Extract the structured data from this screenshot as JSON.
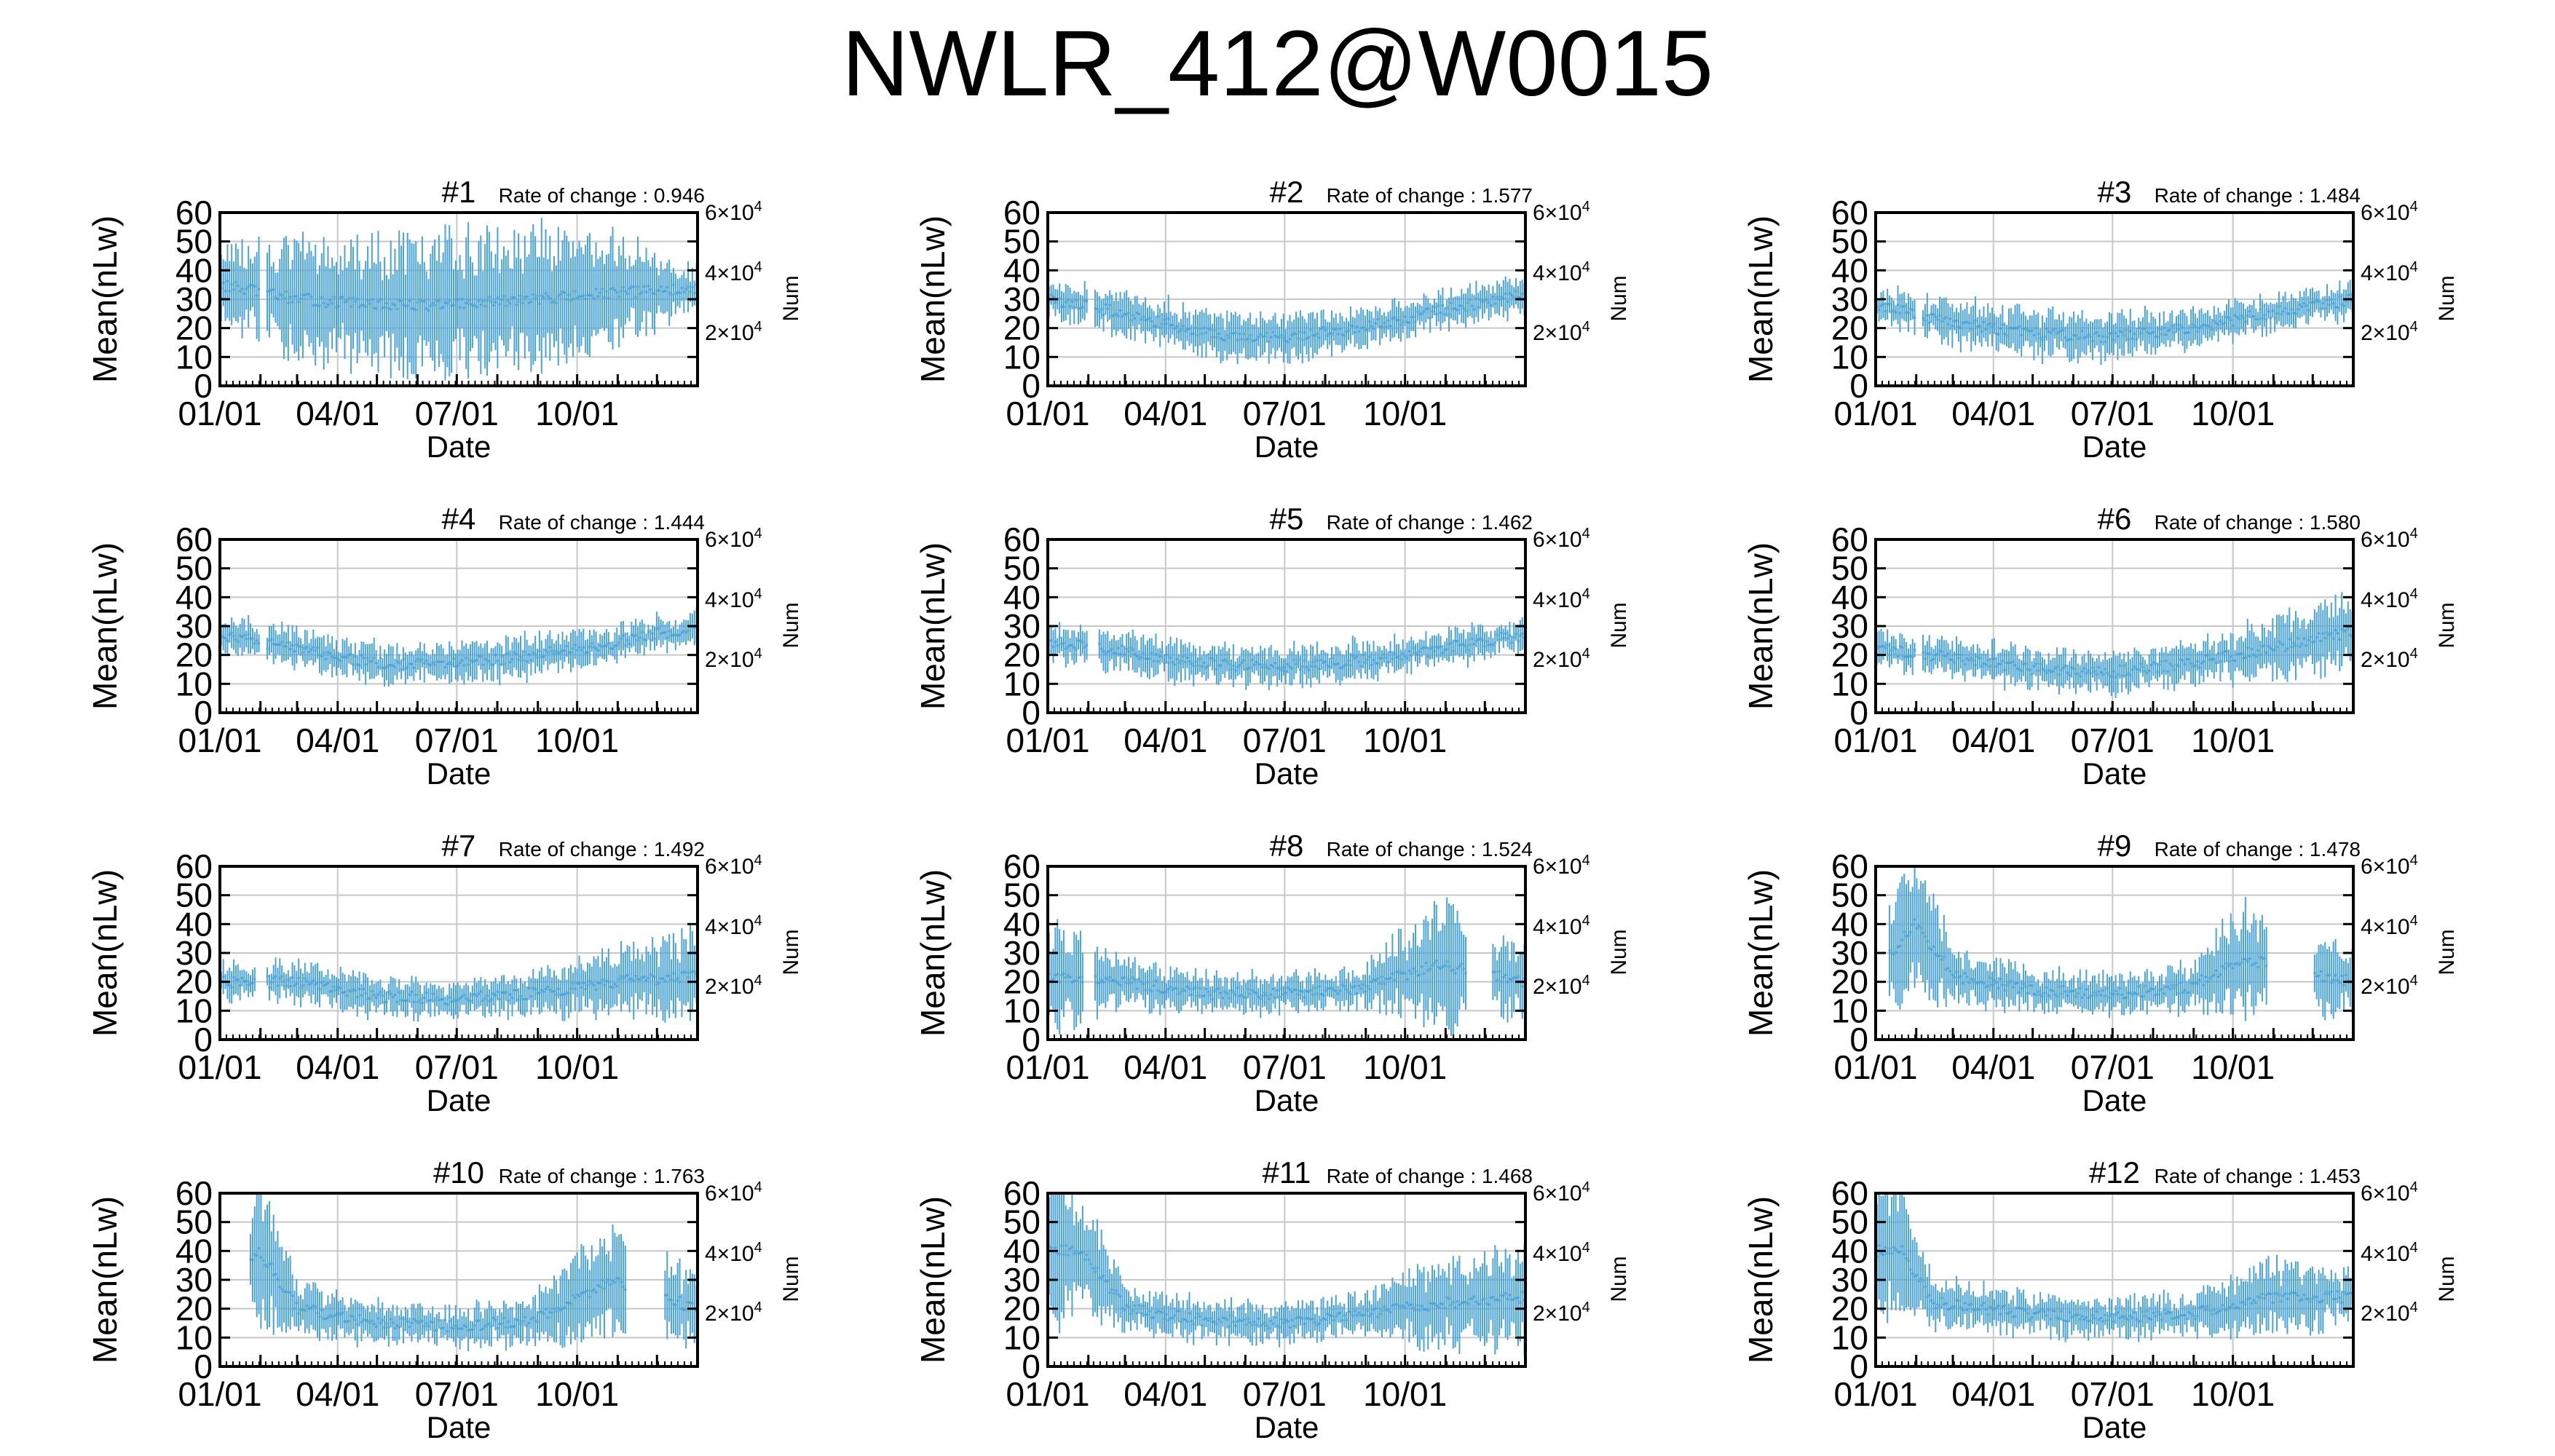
{
  "title": "NWLR_412@W0015",
  "shared": {
    "xlabel": "Date",
    "ylabel": "Mean(nLw)",
    "y2label": "Num",
    "x_ticks": [
      "01/01",
      "04/01",
      "07/01",
      "10/01"
    ],
    "y_ticks": [
      "0",
      "10",
      "20",
      "30",
      "40",
      "50",
      "60"
    ],
    "y2_ticks": [
      {
        "base": "2",
        "exp": "4"
      },
      {
        "base": "4",
        "exp": "4"
      },
      {
        "base": "6",
        "exp": "4"
      }
    ],
    "rate_prefix": "Rate of change : ",
    "series_color": "#4aa3d6",
    "grid": true,
    "ylim": [
      0,
      60
    ],
    "xlim_days": [
      0,
      365
    ]
  },
  "chart_data": [
    {
      "type": "line",
      "title": "#1",
      "rate": "0.946",
      "ylim": [
        0,
        60
      ],
      "profile": [
        [
          0,
          35
        ],
        [
          60,
          30
        ],
        [
          120,
          28
        ],
        [
          180,
          28
        ],
        [
          240,
          30
        ],
        [
          300,
          32
        ],
        [
          365,
          34
        ]
      ],
      "spread": [
        [
          0,
          14
        ],
        [
          60,
          18
        ],
        [
          120,
          20
        ],
        [
          180,
          22
        ],
        [
          240,
          22
        ],
        [
          300,
          18
        ],
        [
          365,
          6
        ]
      ],
      "gaps": [
        [
          30,
          36
        ]
      ]
    },
    {
      "type": "line",
      "title": "#2",
      "rate": "1.577",
      "ylim": [
        0,
        60
      ],
      "profile": [
        [
          0,
          30
        ],
        [
          60,
          25
        ],
        [
          120,
          18
        ],
        [
          180,
          17
        ],
        [
          240,
          20
        ],
        [
          300,
          26
        ],
        [
          365,
          32
        ]
      ],
      "spread": [
        [
          0,
          5
        ],
        [
          60,
          7
        ],
        [
          120,
          7
        ],
        [
          180,
          7
        ],
        [
          240,
          6
        ],
        [
          300,
          5
        ],
        [
          365,
          6
        ]
      ],
      "gaps": [
        [
          30,
          36
        ]
      ]
    },
    {
      "type": "line",
      "title": "#3",
      "rate": "1.484",
      "ylim": [
        0,
        60
      ],
      "profile": [
        [
          0,
          28
        ],
        [
          60,
          22
        ],
        [
          120,
          18
        ],
        [
          180,
          17
        ],
        [
          240,
          20
        ],
        [
          300,
          25
        ],
        [
          365,
          30
        ]
      ],
      "spread": [
        [
          0,
          5
        ],
        [
          60,
          7
        ],
        [
          120,
          7
        ],
        [
          180,
          7
        ],
        [
          240,
          6
        ],
        [
          300,
          5
        ],
        [
          365,
          5
        ]
      ],
      "gaps": [
        [
          30,
          36
        ]
      ]
    },
    {
      "type": "line",
      "title": "#4",
      "rate": "1.444",
      "ylim": [
        0,
        60
      ],
      "profile": [
        [
          0,
          27
        ],
        [
          60,
          22
        ],
        [
          120,
          17
        ],
        [
          180,
          17
        ],
        [
          240,
          20
        ],
        [
          300,
          24
        ],
        [
          365,
          30
        ]
      ],
      "spread": [
        [
          0,
          5
        ],
        [
          60,
          6
        ],
        [
          120,
          6
        ],
        [
          180,
          6
        ],
        [
          240,
          6
        ],
        [
          300,
          5
        ],
        [
          365,
          5
        ]
      ],
      "gaps": [
        [
          30,
          36
        ]
      ]
    },
    {
      "type": "line",
      "title": "#5",
      "rate": "1.462",
      "ylim": [
        0,
        60
      ],
      "profile": [
        [
          0,
          25
        ],
        [
          60,
          21
        ],
        [
          120,
          17
        ],
        [
          180,
          16
        ],
        [
          240,
          18
        ],
        [
          300,
          22
        ],
        [
          365,
          27
        ]
      ],
      "spread": [
        [
          0,
          5
        ],
        [
          60,
          6
        ],
        [
          120,
          6
        ],
        [
          180,
          6
        ],
        [
          240,
          6
        ],
        [
          300,
          5
        ],
        [
          365,
          5
        ]
      ],
      "gaps": [
        [
          30,
          38
        ]
      ]
    },
    {
      "type": "line",
      "title": "#6",
      "rate": "1.580",
      "ylim": [
        0,
        60
      ],
      "profile": [
        [
          0,
          22
        ],
        [
          60,
          19
        ],
        [
          120,
          15
        ],
        [
          180,
          14
        ],
        [
          240,
          17
        ],
        [
          300,
          22
        ],
        [
          365,
          28
        ]
      ],
      "spread": [
        [
          0,
          5
        ],
        [
          60,
          6
        ],
        [
          120,
          6
        ],
        [
          180,
          6
        ],
        [
          240,
          6
        ],
        [
          300,
          9
        ],
        [
          365,
          12
        ]
      ],
      "gaps": [
        [
          30,
          36
        ]
      ]
    },
    {
      "type": "line",
      "title": "#7",
      "rate": "1.492",
      "ylim": [
        0,
        60
      ],
      "profile": [
        [
          0,
          20
        ],
        [
          60,
          20
        ],
        [
          120,
          15
        ],
        [
          180,
          14
        ],
        [
          240,
          16
        ],
        [
          300,
          20
        ],
        [
          365,
          22
        ]
      ],
      "spread": [
        [
          0,
          5
        ],
        [
          60,
          6
        ],
        [
          120,
          6
        ],
        [
          180,
          5
        ],
        [
          240,
          6
        ],
        [
          300,
          10
        ],
        [
          365,
          14
        ]
      ],
      "gaps": [
        [
          28,
          36
        ]
      ]
    },
    {
      "type": "line",
      "title": "#8",
      "rate": "1.524",
      "ylim": [
        0,
        60
      ],
      "profile": [
        [
          0,
          22
        ],
        [
          60,
          20
        ],
        [
          120,
          16
        ],
        [
          180,
          16
        ],
        [
          240,
          18
        ],
        [
          300,
          26
        ],
        [
          365,
          20
        ]
      ],
      "spread": [
        [
          0,
          18
        ],
        [
          60,
          7
        ],
        [
          120,
          6
        ],
        [
          180,
          6
        ],
        [
          240,
          6
        ],
        [
          300,
          20
        ],
        [
          365,
          10
        ]
      ],
      "gaps": [
        [
          28,
          36
        ],
        [
          320,
          340
        ]
      ]
    },
    {
      "type": "line",
      "title": "#9",
      "rate": "1.478",
      "ylim": [
        0,
        60
      ],
      "profile": [
        [
          0,
          24
        ],
        [
          30,
          40
        ],
        [
          60,
          22
        ],
        [
          120,
          17
        ],
        [
          180,
          16
        ],
        [
          240,
          18
        ],
        [
          280,
          28
        ],
        [
          365,
          20
        ]
      ],
      "spread": [
        [
          0,
          10
        ],
        [
          30,
          25
        ],
        [
          60,
          8
        ],
        [
          120,
          6
        ],
        [
          180,
          6
        ],
        [
          240,
          7
        ],
        [
          280,
          18
        ],
        [
          365,
          10
        ]
      ],
      "gaps": [
        [
          0,
          10
        ],
        [
          300,
          335
        ]
      ]
    },
    {
      "type": "line",
      "title": "#10",
      "rate": "1.763",
      "ylim": [
        0,
        60
      ],
      "profile": [
        [
          0,
          20
        ],
        [
          30,
          40
        ],
        [
          60,
          20
        ],
        [
          120,
          15
        ],
        [
          180,
          14
        ],
        [
          240,
          16
        ],
        [
          300,
          30
        ],
        [
          365,
          20
        ]
      ],
      "spread": [
        [
          0,
          10
        ],
        [
          30,
          22
        ],
        [
          60,
          8
        ],
        [
          120,
          6
        ],
        [
          180,
          6
        ],
        [
          240,
          7
        ],
        [
          300,
          18
        ],
        [
          365,
          10
        ]
      ],
      "gaps": [
        [
          0,
          22
        ],
        [
          310,
          340
        ]
      ]
    },
    {
      "type": "line",
      "title": "#11",
      "rate": "1.468",
      "ylim": [
        0,
        60
      ],
      "profile": [
        [
          0,
          40
        ],
        [
          25,
          40
        ],
        [
          60,
          20
        ],
        [
          120,
          16
        ],
        [
          180,
          15
        ],
        [
          240,
          18
        ],
        [
          300,
          22
        ],
        [
          365,
          24
        ]
      ],
      "spread": [
        [
          0,
          25
        ],
        [
          25,
          20
        ],
        [
          60,
          6
        ],
        [
          120,
          6
        ],
        [
          180,
          6
        ],
        [
          240,
          6
        ],
        [
          300,
          14
        ],
        [
          365,
          16
        ]
      ],
      "gaps": []
    },
    {
      "type": "line",
      "title": "#12",
      "rate": "1.453",
      "ylim": [
        0,
        60
      ],
      "profile": [
        [
          0,
          40
        ],
        [
          20,
          40
        ],
        [
          45,
          22
        ],
        [
          120,
          18
        ],
        [
          180,
          17
        ],
        [
          240,
          18
        ],
        [
          300,
          24
        ],
        [
          365,
          24
        ]
      ],
      "spread": [
        [
          0,
          20
        ],
        [
          20,
          20
        ],
        [
          45,
          7
        ],
        [
          120,
          6
        ],
        [
          180,
          6
        ],
        [
          240,
          6
        ],
        [
          300,
          12
        ],
        [
          365,
          8
        ]
      ],
      "gaps": []
    }
  ]
}
